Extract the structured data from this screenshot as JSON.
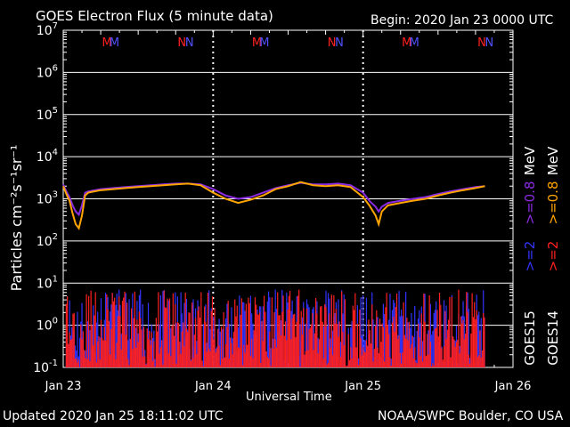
{
  "title": "GOES Electron Flux (5 minute data)",
  "begin": "Begin: 2020 Jan 23 0000 UTC",
  "updated": "Updated 2020 Jan 25 18:11:02 UTC",
  "credit": "NOAA/SWPC Boulder, CO USA",
  "xlabel": "Universal Time",
  "ylabel": "Particles cm⁻²s⁻¹sr⁻¹",
  "colors": {
    "purple": "#8a2be2",
    "orange": "#ffa500",
    "blue": "#3333ff",
    "red": "#ff2020",
    "mred": "#ff2020",
    "mblue": "#5050ff"
  },
  "chart_data": {
    "type": "line",
    "y_scale": "log",
    "ylim": [
      0.1,
      10000000
    ],
    "y_ticks": [
      {
        "base": "10",
        "exp": "7",
        "value": 10000000
      },
      {
        "base": "10",
        "exp": "6",
        "value": 1000000
      },
      {
        "base": "10",
        "exp": "5",
        "value": 100000
      },
      {
        "base": "10",
        "exp": "4",
        "value": 10000
      },
      {
        "base": "10",
        "exp": "3",
        "value": 1000
      },
      {
        "base": "10",
        "exp": "2",
        "value": 100
      },
      {
        "base": "10",
        "exp": "1",
        "value": 10
      },
      {
        "base": "10",
        "exp": "0",
        "value": 1
      },
      {
        "base": "10",
        "exp": "-1",
        "value": 0.1
      }
    ],
    "xlim": [
      "2020-01-23 00:00",
      "2020-01-26 00:00"
    ],
    "x_ticks": [
      {
        "label": "Jan 23",
        "t": 0
      },
      {
        "label": "Jan 24",
        "t": 24
      },
      {
        "label": "Jan 25",
        "t": 48
      },
      {
        "label": "Jan 26",
        "t": 72
      }
    ],
    "threshold": 1000,
    "marker_rows": [
      {
        "t": 7.0,
        "label": "M",
        "color": "mred"
      },
      {
        "t": 8.2,
        "label": "M",
        "color": "mblue"
      },
      {
        "t": 19.0,
        "label": "N",
        "color": "mred"
      },
      {
        "t": 20.2,
        "label": "N",
        "color": "mblue"
      },
      {
        "t": 31.0,
        "label": "M",
        "color": "mred"
      },
      {
        "t": 32.2,
        "label": "M",
        "color": "mblue"
      },
      {
        "t": 43.0,
        "label": "N",
        "color": "mred"
      },
      {
        "t": 44.2,
        "label": "N",
        "color": "mblue"
      },
      {
        "t": 55.0,
        "label": "M",
        "color": "mred"
      },
      {
        "t": 56.2,
        "label": "M",
        "color": "mblue"
      },
      {
        "t": 67.0,
        "label": "N",
        "color": "mred"
      },
      {
        "t": 68.2,
        "label": "N",
        "color": "mblue"
      }
    ],
    "legend": [
      {
        "text": "MeV",
        "color": "#ffffff"
      },
      {
        "text": ">=0.8",
        "color": "#8a2be2"
      },
      {
        "text": ">=2",
        "color": "#3333ff"
      },
      {
        "text": "GOES15",
        "color": "#ffffff"
      },
      {
        "text": "MeV",
        "color": "#ffffff"
      },
      {
        "text": ">=0.8",
        "color": "#ffa500"
      },
      {
        "text": ">=2",
        "color": "#ff2020"
      },
      {
        "text": "GOES14",
        "color": "#ffffff"
      }
    ],
    "series": [
      {
        "name": "GOES15 >=0.8 MeV",
        "color": "purple",
        "x": [
          0,
          0.5,
          1,
          1.5,
          2,
          2.5,
          3,
          3.5,
          4,
          5,
          6,
          8,
          10,
          12,
          14,
          16,
          18,
          20,
          22,
          24,
          26,
          28,
          30,
          32,
          34,
          36,
          38,
          40,
          42,
          44,
          46,
          48,
          49,
          50,
          50.5,
          51,
          52,
          54,
          56,
          58,
          60,
          62,
          64,
          66,
          67.5
        ],
        "y": [
          2200,
          1500,
          1100,
          700,
          500,
          420,
          700,
          1400,
          1500,
          1600,
          1700,
          1800,
          1900,
          2000,
          2100,
          2200,
          2300,
          2300,
          2200,
          1700,
          1200,
          1000,
          1100,
          1400,
          1800,
          2100,
          2400,
          2200,
          2200,
          2300,
          2100,
          1400,
          900,
          650,
          500,
          650,
          800,
          900,
          1000,
          1100,
          1300,
          1500,
          1700,
          1900,
          2000
        ]
      },
      {
        "name": "GOES14 >=0.8 MeV",
        "color": "orange",
        "x": [
          0,
          0.5,
          1,
          1.5,
          2,
          2.5,
          3,
          3.5,
          4,
          5,
          6,
          8,
          10,
          12,
          14,
          16,
          18,
          20,
          22,
          24,
          26,
          28,
          30,
          32,
          34,
          36,
          38,
          40,
          42,
          44,
          46,
          48,
          49,
          50,
          50.5,
          51,
          52,
          54,
          56,
          58,
          60,
          62,
          64,
          66,
          67.5
        ],
        "y": [
          2000,
          1300,
          900,
          450,
          250,
          200,
          400,
          1200,
          1400,
          1500,
          1600,
          1700,
          1800,
          1900,
          2000,
          2100,
          2200,
          2300,
          2100,
          1400,
          1000,
          800,
          950,
          1200,
          1700,
          2000,
          2500,
          2100,
          2000,
          2100,
          1900,
          1100,
          700,
          400,
          250,
          500,
          700,
          800,
          900,
          1000,
          1200,
          1400,
          1600,
          1800,
          2000
        ]
      },
      {
        "name": "GOES15 >=2 MeV",
        "color": "blue",
        "min": 0.1,
        "max": 7
      },
      {
        "name": "GOES14 >=2 MeV",
        "color": "red",
        "min": 0.1,
        "max": 7
      }
    ]
  }
}
